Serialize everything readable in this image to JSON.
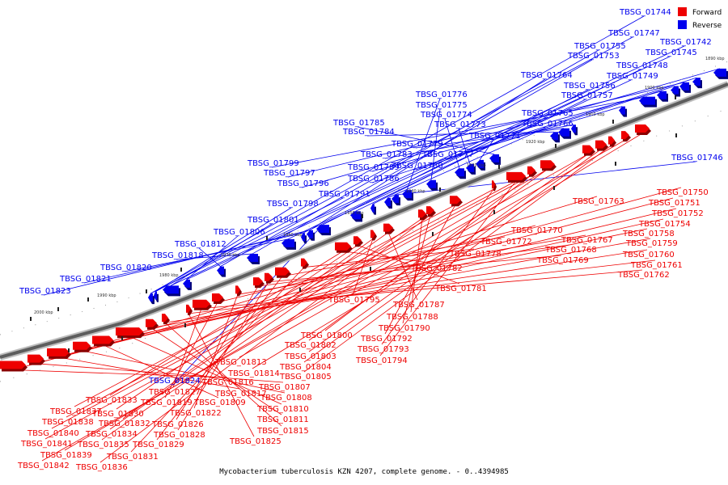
{
  "caption": "Mycobacterium tuberculosis KZN 4207, complete genome. - 0..4394985",
  "legend": [
    {
      "label": "Forward",
      "color": "#ee0000"
    },
    {
      "label": "Reverse",
      "color": "#0000ee"
    }
  ],
  "colors": {
    "forward": "#ee0000",
    "reverse": "#0000ee",
    "backbone": "#7a7a7a"
  },
  "ticks": [
    "2000 kbp",
    "1990 kbp",
    "1980 kbp",
    "1970 kbp",
    "1960 kbp",
    "1950 kbp",
    "1940 kbp",
    "1930 kbp",
    "1920 kbp",
    "1910 kbp",
    "1900 kbp",
    "1890 kbp"
  ],
  "reverse_labels": [
    "TBSG_01744",
    "TBSG_01747",
    "TBSG_01742",
    "TBSG_01745",
    "TBSG_01755",
    "TBSG_01753",
    "TBSG_01748",
    "TBSG_01749",
    "TBSG_01764",
    "TBSG_01756",
    "TBSG_01757",
    "TBSG_01765",
    "TBSG_01766",
    "TBSG_01746",
    "TBSG_01776",
    "TBSG_01775",
    "TBSG_01774",
    "TBSG_01773",
    "TBSG_01771",
    "TBSG_01785",
    "TBSG_01784",
    "TBSG_01779",
    "TBSG_01783",
    "TBSG_01777",
    "TBSG_01799",
    "TBSG_01789",
    "TBSG_01780",
    "TBSG_01797",
    "TBSG_01786",
    "TBSG_01796",
    "TBSG_01791",
    "TBSG_01798",
    "TBSG_01801",
    "TBSG_01806",
    "TBSG_01812",
    "TBSG_01818",
    "TBSG_01820",
    "TBSG_01821",
    "TBSG_01823",
    "TBSG_01824"
  ],
  "forward_labels": [
    "TBSG_01750",
    "TBSG_01751",
    "TBSG_01763",
    "TBSG_01752",
    "TBSG_01754",
    "TBSG_01758",
    "TBSG_01759",
    "TBSG_01760",
    "TBSG_01761",
    "TBSG_01762",
    "TBSG_01770",
    "TBSG_01767",
    "TBSG_01768",
    "TBSG_01769",
    "TBSG_01772",
    "TBSG_01778",
    "TBSG_01782",
    "TBSG_01781",
    "TBSG_01795",
    "TBSG_01787",
    "TBSG_01788",
    "TBSG_01790",
    "TBSG_01792",
    "TBSG_01793",
    "TBSG_01794",
    "TBSG_01800",
    "TBSG_01802",
    "TBSG_01803",
    "TBSG_01804",
    "TBSG_01805",
    "TBSG_01813",
    "TBSG_01814",
    "TBSG_01816",
    "TBSG_01807",
    "TBSG_01817",
    "TBSG_01808",
    "TBSG_01809",
    "TBSG_01810",
    "TBSG_01811",
    "TBSG_01815",
    "TBSG_01825",
    "TBSG_01827",
    "TBSG_01819",
    "TBSG_01822",
    "TBSG_01826",
    "TBSG_01828",
    "TBSG_01829",
    "TBSG_01831",
    "TBSG_01833",
    "TBSG_01830",
    "TBSG_01832",
    "TBSG_01834",
    "TBSG_01835",
    "TBSG_01836",
    "TBSG_01837",
    "TBSG_01838",
    "TBSG_01840",
    "TBSG_01841",
    "TBSG_01839",
    "TBSG_01842"
  ]
}
